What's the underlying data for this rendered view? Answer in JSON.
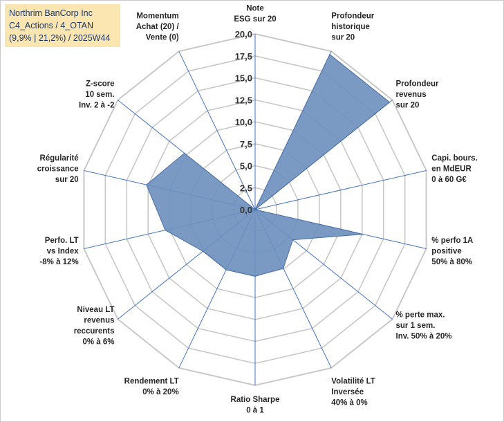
{
  "info": {
    "company": "Northrim BanCorp Inc",
    "category": "C4_Actions / 4_OTAN",
    "perf": "(9,9% | 21,2%) / 2025W44"
  },
  "chart_data": {
    "type": "radar",
    "title": "",
    "r_min": 0,
    "r_max": 20,
    "r_step": 2.5,
    "gridlines": true,
    "tick_labels": [
      "0,0",
      "2,5",
      "5,0",
      "7,5",
      "10,0",
      "12,5",
      "15,0",
      "17,5",
      "20,0"
    ],
    "axes": [
      {
        "label": [
          "Note",
          "ESG sur 20"
        ],
        "value": 0
      },
      {
        "label": [
          "Profondeur",
          "historique",
          "sur 20"
        ],
        "value": 19.6
      },
      {
        "label": [
          "Profondeur",
          "revenus",
          "sur 20"
        ],
        "value": 19.6
      },
      {
        "label": [
          "Capi. bours.",
          "en MdEUR",
          "0 à 60 G€"
        ],
        "value": 0
      },
      {
        "label": [
          "% perfo 1A",
          "positive",
          "50% à 80%"
        ],
        "value": 12.6
      },
      {
        "label": [
          "% perte max.",
          "sur 1 sem.",
          "Inv. 50% à 20%"
        ],
        "value": 5.5
      },
      {
        "label": [
          "Volatilité LT",
          "Inversée",
          "40% à 0%"
        ],
        "value": 7.4
      },
      {
        "label": [
          "Ratio Sharpe",
          "0 à 1"
        ],
        "value": 7.6
      },
      {
        "label": [
          "Rendement LT",
          "0% à 20%"
        ],
        "value": 7.6
      },
      {
        "label": [
          "Niveau LT",
          "revenus",
          "reccurents",
          "0% à 6%"
        ],
        "value": 7.6
      },
      {
        "label": [
          "Perfo. LT",
          "vs Index",
          "-8% à 12%"
        ],
        "value": 10.5
      },
      {
        "label": [
          "Régularité",
          "croissance",
          "sur 20"
        ],
        "value": 12.7
      },
      {
        "label": [
          "Z-score",
          "10 sem.",
          "Inv. 2 à -2"
        ],
        "value": 10.3
      },
      {
        "label": [
          "Momentum",
          "Achat (20) /",
          "Vente (0)"
        ],
        "value": 0
      }
    ],
    "series": [
      {
        "name": "Northrim BanCorp Inc",
        "color": "#6b8fbd",
        "edge_color": "#4a6fa3"
      }
    ],
    "grid_color": "#c8c8c8",
    "spoke_color": "#4472c4"
  }
}
